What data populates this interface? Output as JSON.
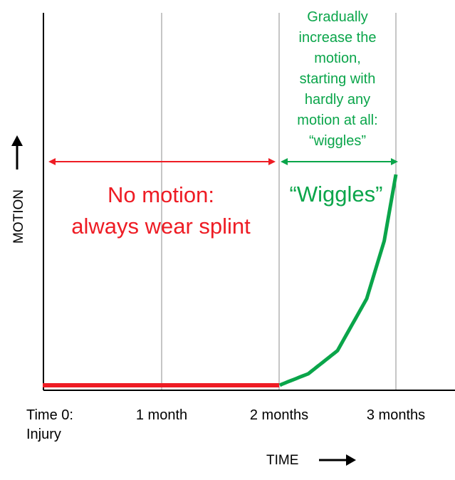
{
  "chart_data": {
    "type": "line",
    "title": "",
    "xlabel": "TIME",
    "ylabel": "MOTION",
    "x_unit": "months",
    "xlim": [
      -0.2,
      3.5
    ],
    "ylim": [
      0,
      1
    ],
    "grid": "vertical",
    "ticks": [
      {
        "value": 0,
        "lines": [
          "Time 0:",
          "Injury"
        ]
      },
      {
        "value": 1,
        "lines": [
          "1 month"
        ]
      },
      {
        "value": 2,
        "lines": [
          "2 months"
        ]
      },
      {
        "value": 3,
        "lines": [
          "3 months"
        ]
      }
    ],
    "series": [
      {
        "color": "#ee1c24",
        "points": [
          [
            0,
            0.01
          ],
          [
            2,
            0.01
          ]
        ]
      },
      {
        "color": "#0aa54a",
        "points": [
          [
            2,
            0.0
          ],
          [
            2.25,
            0.04
          ],
          [
            2.5,
            0.12
          ],
          [
            2.75,
            0.3
          ],
          [
            2.9,
            0.5
          ],
          [
            3.0,
            0.73
          ]
        ]
      }
    ],
    "annotations": [
      {
        "id": "no-motion",
        "color": "#ee1c24",
        "range": [
          0,
          2
        ],
        "lines": [
          "No motion:",
          "always wear splint"
        ]
      },
      {
        "id": "wiggles",
        "color": "#0aa54a",
        "range": [
          2,
          3
        ],
        "lines": [
          "“Wiggles”"
        ]
      },
      {
        "id": "gradually",
        "color": "#0aa54a",
        "lines": [
          "Gradually",
          "increase the",
          "motion,",
          "starting with",
          "hardly any",
          "motion at all:",
          "“wiggles”"
        ]
      }
    ]
  }
}
